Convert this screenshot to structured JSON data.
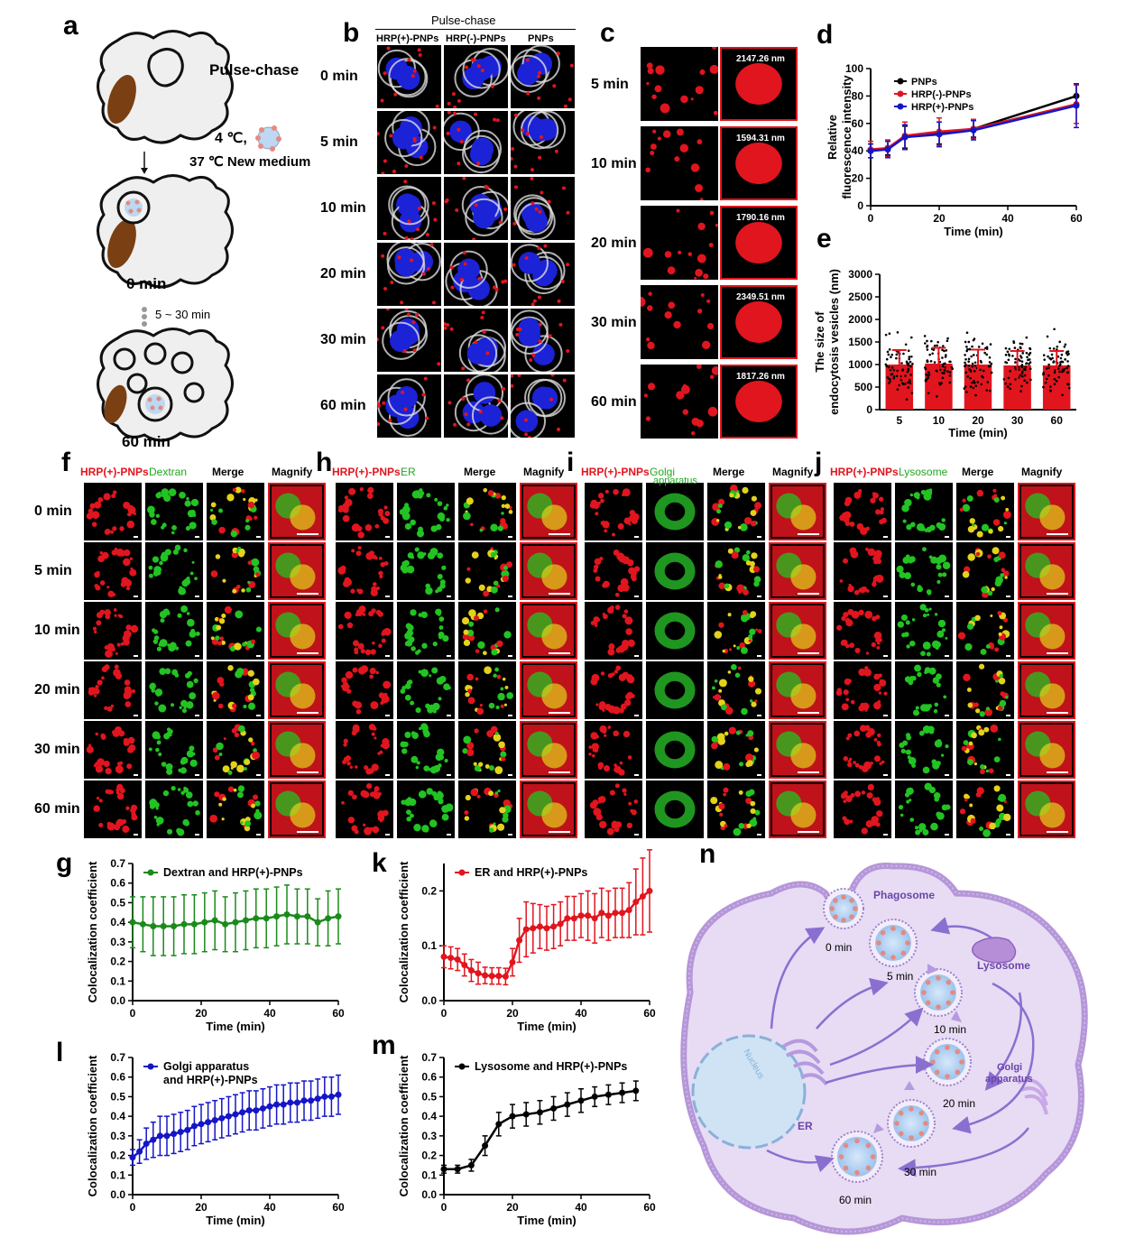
{
  "panels": {
    "a": {
      "letter": "a",
      "title": "Pulse-chase",
      "cond1": "4 ℃,",
      "cond2": "37 ℃ New medium",
      "t0": "0 min",
      "interval": "5 ~ 30 min",
      "t60": "60 min"
    },
    "b": {
      "letter": "b",
      "header": "Pulse-chase",
      "cols": [
        "HRP(+)-PNPs",
        "HRP(-)-PNPs",
        "PNPs"
      ],
      "rows": [
        "0 min",
        "5 min",
        "10 min",
        "20 min",
        "30 min",
        "60 min"
      ]
    },
    "c": {
      "letter": "c",
      "rows": [
        "5 min",
        "10 min",
        "20 min",
        "30 min",
        "60 min"
      ],
      "sizes": [
        "2147.26 nm",
        "1594.31 nm",
        "1790.16 nm",
        "2349.51 nm",
        "1817.26 nm"
      ]
    },
    "f": {
      "letter": "f",
      "cols": [
        "HRP(+)-PNPs",
        "Dextran",
        "Merge",
        "Magnify"
      ],
      "rows": [
        "0 min",
        "5 min",
        "10 min",
        "20 min",
        "30 min",
        "60 min"
      ]
    },
    "h": {
      "letter": "h",
      "cols": [
        "HRP(+)-PNPs",
        "ER",
        "Merge",
        "Magnify"
      ]
    },
    "i": {
      "letter": "i",
      "cols": [
        "HRP(+)-PNPs",
        "Golgi",
        "apparatus",
        "Merge",
        "Magnify"
      ]
    },
    "j": {
      "letter": "j",
      "cols": [
        "HRP(+)-PNPs",
        "Lysosome",
        "Merge",
        "Magnify"
      ]
    },
    "n": {
      "letter": "n",
      "labels": {
        "phagosome": "Phagosome",
        "lysosome": "Lysosome",
        "nucleus": "Nucleus",
        "er": "ER",
        "golgi1": "Golgi",
        "golgi2": "apparatus",
        "t0": "0 min",
        "t5": "5 min",
        "t10": "10 min",
        "t20": "20 min",
        "t30": "30 min",
        "t60": "60 min"
      }
    }
  },
  "colors": {
    "red": "#e1151e",
    "green": "#1a8a1a",
    "blue": "#1515c8",
    "black": "#000000",
    "cellPurple": "#e7dcf4",
    "membrane": "#b596d8"
  },
  "chart_data": [
    {
      "id": "d",
      "type": "line",
      "letter": "d",
      "xlabel": "Time (min)",
      "ylabel": "Relative fluorescence intensity",
      "ylabel1": "Relative",
      "ylabel2": "fluorescence intensity",
      "xlim": [
        0,
        60
      ],
      "ylim": [
        0,
        100
      ],
      "xticks": [
        0,
        20,
        40,
        60
      ],
      "yticks": [
        0,
        20,
        40,
        60,
        80,
        100
      ],
      "x": [
        0,
        5,
        10,
        20,
        30,
        60
      ],
      "series": [
        {
          "name": "PNPs",
          "color": "#000000",
          "values": [
            40,
            42,
            50,
            53,
            56,
            80
          ],
          "err": [
            5,
            5,
            8,
            8,
            6,
            8
          ]
        },
        {
          "name": "HRP(-)-PNPs",
          "color": "#e1151e",
          "values": [
            41,
            42,
            51,
            54,
            56,
            74
          ],
          "err": [
            6,
            6,
            10,
            10,
            7,
            14
          ]
        },
        {
          "name": "HRP(+)-PNPs",
          "color": "#1515c8",
          "values": [
            40,
            41,
            50,
            52,
            55,
            73
          ],
          "err": [
            5,
            6,
            9,
            9,
            7,
            16
          ]
        }
      ]
    },
    {
      "id": "e",
      "type": "bar",
      "letter": "e",
      "xlabel": "Time (min)",
      "ylabel1": "The size of",
      "ylabel2": "endocytosis vesicles (nm)",
      "categories": [
        "5",
        "10",
        "20",
        "30",
        "60"
      ],
      "values": [
        1000,
        1020,
        1000,
        980,
        980
      ],
      "err": [
        320,
        350,
        330,
        320,
        320
      ],
      "ylim": [
        0,
        3000
      ],
      "yticks": [
        0,
        500,
        1000,
        1500,
        2000,
        2500,
        3000
      ]
    },
    {
      "id": "g",
      "type": "line",
      "letter": "g",
      "legend": "Dextran and HRP(+)-PNPs",
      "color": "#1a8a1a",
      "xlabel": "Time (min)",
      "ylabel": "Colocalization coefficient",
      "xlim": [
        0,
        60
      ],
      "ylim": [
        0,
        0.7
      ],
      "xticks": [
        0,
        20,
        40,
        60
      ],
      "yticks": [
        0.0,
        0.1,
        0.2,
        0.3,
        0.4,
        0.5,
        0.6,
        0.7
      ],
      "x": [
        0,
        3,
        6,
        9,
        12,
        15,
        18,
        21,
        24,
        27,
        30,
        33,
        36,
        39,
        42,
        45,
        48,
        51,
        54,
        57,
        60
      ],
      "values": [
        0.4,
        0.39,
        0.38,
        0.38,
        0.38,
        0.39,
        0.39,
        0.4,
        0.41,
        0.39,
        0.4,
        0.41,
        0.42,
        0.42,
        0.43,
        0.44,
        0.43,
        0.43,
        0.4,
        0.42,
        0.43
      ],
      "err": [
        0.13,
        0.14,
        0.15,
        0.15,
        0.15,
        0.15,
        0.15,
        0.15,
        0.15,
        0.14,
        0.15,
        0.15,
        0.15,
        0.15,
        0.15,
        0.15,
        0.14,
        0.14,
        0.12,
        0.14,
        0.14
      ]
    },
    {
      "id": "k",
      "type": "line",
      "letter": "k",
      "legend": "ER and HRP(+)-PNPs",
      "color": "#e1151e",
      "xlabel": "Time (min)",
      "ylabel": "Colocalization coefficient",
      "xlim": [
        0,
        60
      ],
      "ylim": [
        0,
        0.25
      ],
      "xticks": [
        0,
        20,
        40,
        60
      ],
      "yticks": [
        0.0,
        0.1,
        0.2
      ],
      "x": [
        0,
        2,
        4,
        6,
        8,
        10,
        12,
        14,
        16,
        18,
        20,
        22,
        24,
        26,
        28,
        30,
        32,
        34,
        36,
        38,
        40,
        42,
        44,
        46,
        48,
        50,
        52,
        54,
        56,
        58,
        60
      ],
      "values": [
        0.08,
        0.078,
        0.075,
        0.065,
        0.055,
        0.05,
        0.046,
        0.045,
        0.045,
        0.044,
        0.07,
        0.11,
        0.13,
        0.132,
        0.135,
        0.132,
        0.135,
        0.14,
        0.15,
        0.15,
        0.155,
        0.155,
        0.15,
        0.16,
        0.155,
        0.16,
        0.16,
        0.165,
        0.18,
        0.19,
        0.2
      ],
      "err": [
        0.02,
        0.02,
        0.02,
        0.02,
        0.02,
        0.02,
        0.015,
        0.015,
        0.015,
        0.015,
        0.025,
        0.04,
        0.05,
        0.045,
        0.04,
        0.04,
        0.04,
        0.04,
        0.04,
        0.04,
        0.04,
        0.045,
        0.045,
        0.045,
        0.045,
        0.045,
        0.045,
        0.05,
        0.06,
        0.07,
        0.075
      ]
    },
    {
      "id": "l",
      "type": "line",
      "letter": "l",
      "legend1": "Golgi apparatus",
      "legend2": "and HRP(+)-PNPs",
      "color": "#1515c8",
      "xlabel": "Time (min)",
      "ylabel": "Colocalization coefficient",
      "xlim": [
        0,
        60
      ],
      "ylim": [
        0,
        0.7
      ],
      "xticks": [
        0,
        20,
        40,
        60
      ],
      "yticks": [
        0.0,
        0.1,
        0.2,
        0.3,
        0.4,
        0.5,
        0.6,
        0.7
      ],
      "x": [
        0,
        2,
        4,
        6,
        8,
        10,
        12,
        14,
        16,
        18,
        20,
        22,
        24,
        26,
        28,
        30,
        32,
        34,
        36,
        38,
        40,
        42,
        44,
        46,
        48,
        50,
        52,
        54,
        56,
        58,
        60
      ],
      "values": [
        0.19,
        0.22,
        0.26,
        0.28,
        0.3,
        0.3,
        0.31,
        0.32,
        0.33,
        0.35,
        0.36,
        0.37,
        0.38,
        0.39,
        0.4,
        0.41,
        0.42,
        0.43,
        0.43,
        0.44,
        0.45,
        0.46,
        0.46,
        0.47,
        0.47,
        0.48,
        0.48,
        0.49,
        0.5,
        0.5,
        0.51
      ],
      "err": [
        0.04,
        0.06,
        0.08,
        0.09,
        0.1,
        0.1,
        0.1,
        0.1,
        0.1,
        0.1,
        0.1,
        0.1,
        0.1,
        0.1,
        0.1,
        0.1,
        0.1,
        0.1,
        0.1,
        0.1,
        0.1,
        0.1,
        0.1,
        0.1,
        0.1,
        0.1,
        0.1,
        0.1,
        0.1,
        0.1,
        0.1
      ]
    },
    {
      "id": "m",
      "type": "line",
      "letter": "m",
      "legend": "Lysosome and HRP(+)-PNPs",
      "color": "#000000",
      "xlabel": "Time (min)",
      "ylabel": "Colocalization coefficient",
      "xlim": [
        0,
        60
      ],
      "ylim": [
        0,
        0.7
      ],
      "xticks": [
        0,
        20,
        40,
        60
      ],
      "yticks": [
        0.0,
        0.1,
        0.2,
        0.3,
        0.4,
        0.5,
        0.6,
        0.7
      ],
      "x": [
        0,
        4,
        8,
        12,
        16,
        20,
        24,
        28,
        32,
        36,
        40,
        44,
        48,
        52,
        56
      ],
      "values": [
        0.13,
        0.13,
        0.15,
        0.25,
        0.36,
        0.4,
        0.41,
        0.42,
        0.44,
        0.46,
        0.48,
        0.5,
        0.51,
        0.52,
        0.53
      ],
      "err": [
        0.02,
        0.02,
        0.03,
        0.05,
        0.06,
        0.06,
        0.06,
        0.06,
        0.06,
        0.06,
        0.06,
        0.05,
        0.05,
        0.05,
        0.05
      ]
    }
  ]
}
